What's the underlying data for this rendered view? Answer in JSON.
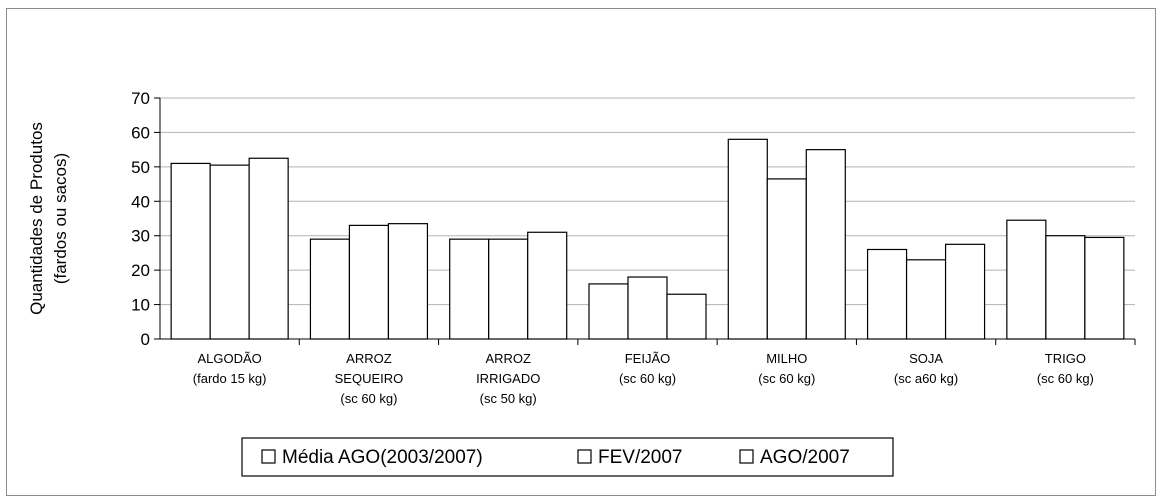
{
  "chart_data": {
    "type": "bar",
    "title": "",
    "ylabel": [
      "Quantidades de Produtos",
      "(fardos ou sacos)"
    ],
    "xlabel": "",
    "ylim": [
      0,
      70
    ],
    "yticks": [
      0,
      10,
      20,
      30,
      40,
      50,
      60,
      70
    ],
    "grid": true,
    "legend_position": "bottom",
    "categories": [
      [
        "ALGODÃO",
        "(fardo 15 kg)"
      ],
      [
        "ARROZ",
        "SEQUEIRO",
        "(sc 60 kg)"
      ],
      [
        "ARROZ",
        "IRRIGADO",
        "(sc 50 kg)"
      ],
      [
        "FEIJÃO",
        "(sc 60 kg)"
      ],
      [
        "MILHO",
        "(sc 60 kg)"
      ],
      [
        "SOJA",
        "(sc a60 kg)"
      ],
      [
        "TRIGO",
        "(sc 60 kg)"
      ]
    ],
    "series": [
      {
        "name": "Média AGO(2003/2007)",
        "values": [
          51,
          29,
          29,
          16,
          58,
          26,
          34.5
        ]
      },
      {
        "name": "FEV/2007",
        "values": [
          50.5,
          33,
          29,
          18,
          46.5,
          23,
          30
        ]
      },
      {
        "name": "AGO/2007",
        "values": [
          52.5,
          33.5,
          31,
          13,
          55,
          27.5,
          29.5
        ]
      }
    ],
    "colors": {
      "bar_fill": "#ffffff",
      "bar_stroke": "#000000",
      "grid": "#b3b3b3"
    }
  }
}
